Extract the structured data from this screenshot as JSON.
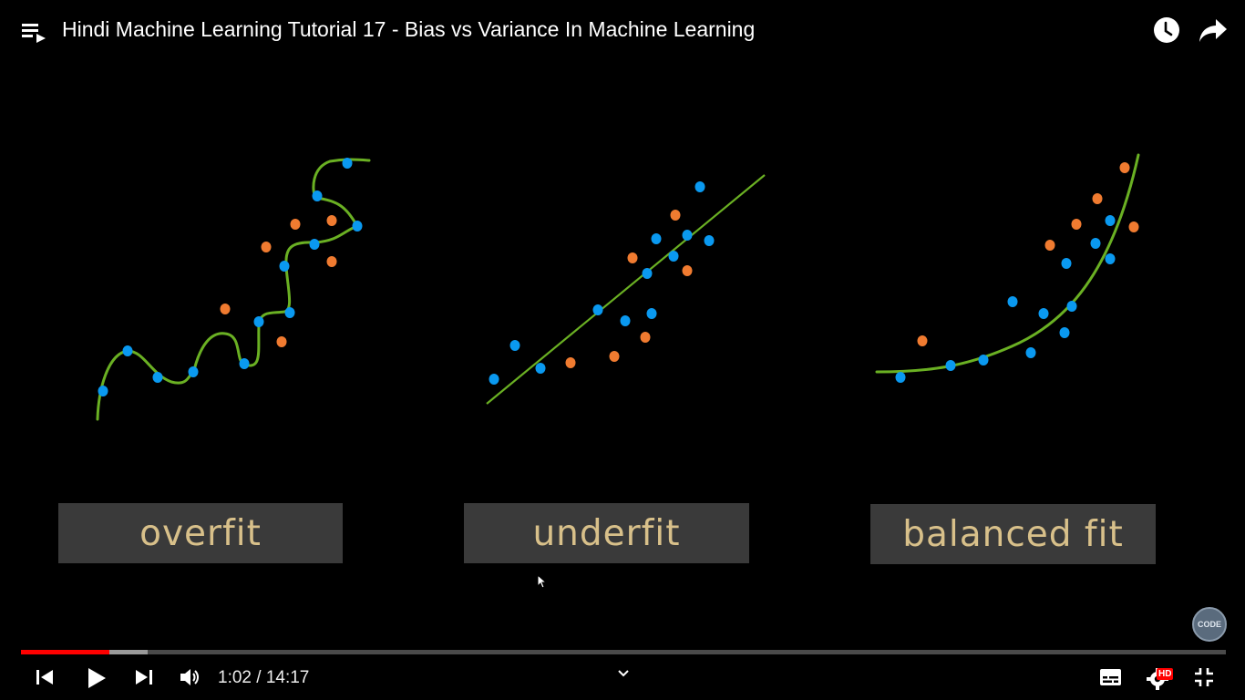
{
  "header": {
    "title": "Hindi Machine Learning Tutorial 17 - Bias vs Variance In Machine Learning",
    "icons": [
      "playlist-icon",
      "watch-later-icon",
      "share-icon"
    ]
  },
  "video": {
    "labels": {
      "overfit": "overfit",
      "underfit": "underfit",
      "balanced": "balanced fit"
    },
    "colors": {
      "curve": "#6ab023",
      "blue_point": "#0a99f0",
      "orange_point": "#f07b30",
      "label_bg": "#3a3a3a",
      "label_text": "#d8c08a"
    },
    "watermark_text": "CODE"
  },
  "player": {
    "time": "1:02 / 14:17",
    "played_fraction": 0.073,
    "buffered_fraction": 0.105,
    "progress_color": "#ff0000",
    "hd_badge": "HD",
    "icons": [
      "previous-icon",
      "play-icon",
      "next-icon",
      "volume-icon",
      "chevron-down-icon",
      "subtitles-icon",
      "settings-icon",
      "exit-fullscreen-icon"
    ]
  }
}
